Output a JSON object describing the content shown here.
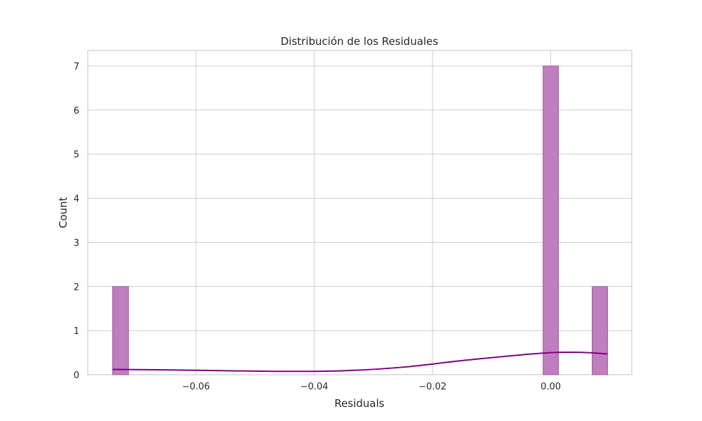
{
  "chart_data": {
    "type": "histogram",
    "title": "Distribución de los Residuales",
    "xlabel": "Residuals",
    "ylabel": "Count",
    "xlim": [
      -0.0783,
      0.0137
    ],
    "ylim": [
      0,
      7.35
    ],
    "x_ticks": [
      {
        "value": -0.06,
        "label": "−0.06"
      },
      {
        "value": -0.04,
        "label": "−0.04"
      },
      {
        "value": -0.02,
        "label": "−0.02"
      },
      {
        "value": 0.0,
        "label": "0.00"
      }
    ],
    "y_ticks": [
      {
        "value": 0,
        "label": "0"
      },
      {
        "value": 1,
        "label": "1"
      },
      {
        "value": 2,
        "label": "2"
      },
      {
        "value": 3,
        "label": "3"
      },
      {
        "value": 4,
        "label": "4"
      },
      {
        "value": 5,
        "label": "5"
      },
      {
        "value": 6,
        "label": "6"
      },
      {
        "value": 7,
        "label": "7"
      }
    ],
    "bins": [
      {
        "x0": -0.0741,
        "x1": -0.0714,
        "count": 2
      },
      {
        "x0": -0.0013,
        "x1": 0.0013,
        "count": 7
      },
      {
        "x0": 0.007,
        "x1": 0.0096,
        "count": 2
      }
    ],
    "kde": {
      "x": [
        -0.0741,
        -0.065,
        -0.055,
        -0.045,
        -0.035,
        -0.025,
        -0.015,
        -0.005,
        0.0,
        0.003,
        0.0065,
        0.0096
      ],
      "y": [
        0.12,
        0.11,
        0.09,
        0.075,
        0.09,
        0.17,
        0.32,
        0.45,
        0.5,
        0.51,
        0.5,
        0.47
      ]
    },
    "grid": true,
    "legend": "none",
    "colors": {
      "bar_fill": "#bf7fbf",
      "kde_line": "#800080"
    }
  }
}
